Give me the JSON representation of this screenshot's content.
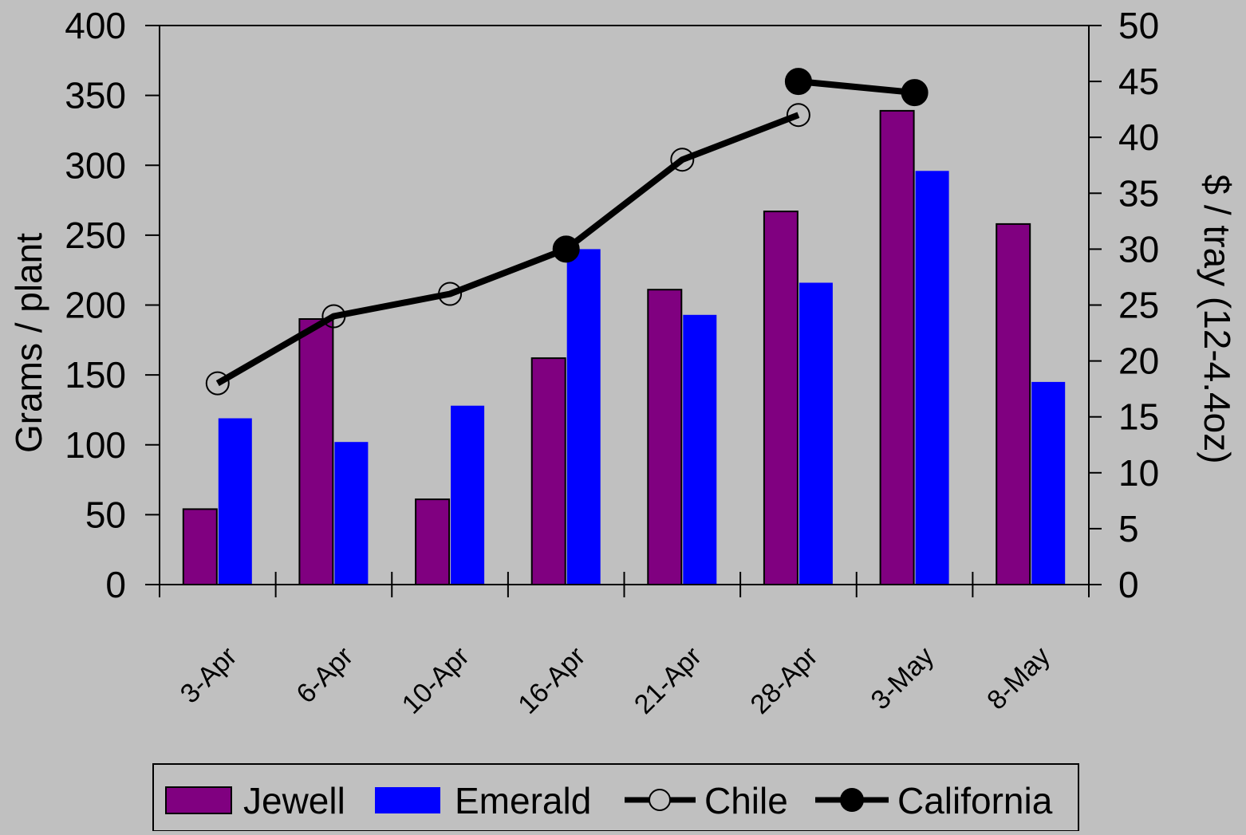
{
  "chart_data": {
    "type": "bar",
    "title": "",
    "categories": [
      "3-Apr",
      "6-Apr",
      "10-Apr",
      "16-Apr",
      "21-Apr",
      "28-Apr",
      "3-May",
      "8-May"
    ],
    "ylabel": "Grams / plant",
    "ylim": [
      0,
      400
    ],
    "yticks": [
      0,
      50,
      100,
      150,
      200,
      250,
      300,
      350,
      400
    ],
    "y2label": "$ / tray (12-4.4oz)",
    "y2lim": [
      0,
      50
    ],
    "y2ticks": [
      0,
      5,
      10,
      15,
      20,
      25,
      30,
      35,
      40,
      45,
      50
    ],
    "grid": false,
    "legend_position": "bottom",
    "bar_series": [
      {
        "name": "Jewell",
        "color": "#800080",
        "values": [
          54,
          190,
          61,
          162,
          211,
          267,
          339,
          258
        ]
      },
      {
        "name": "Emerald",
        "color": "#0000ff",
        "values": [
          119,
          102,
          128,
          240,
          193,
          216,
          296,
          145
        ]
      }
    ],
    "line_series": [
      {
        "name": "Chile",
        "axis": "right",
        "marker": "open-circle",
        "color": "#000000",
        "values": [
          18,
          24,
          26,
          null,
          38,
          42,
          null,
          null
        ]
      },
      {
        "name": "California",
        "axis": "right",
        "marker": "filled-circle",
        "color": "#000000",
        "values": [
          null,
          null,
          null,
          30,
          null,
          45,
          44,
          null
        ]
      }
    ],
    "connecting_line": {
      "name": "",
      "axis": "right",
      "color": "#000000",
      "segments": [
        [
          [
            0,
            18
          ],
          [
            1,
            24
          ],
          [
            2,
            26
          ],
          [
            3,
            30
          ],
          [
            4,
            38
          ],
          [
            5,
            42
          ]
        ],
        [
          [
            5,
            45
          ],
          [
            6,
            44
          ]
        ]
      ]
    }
  }
}
